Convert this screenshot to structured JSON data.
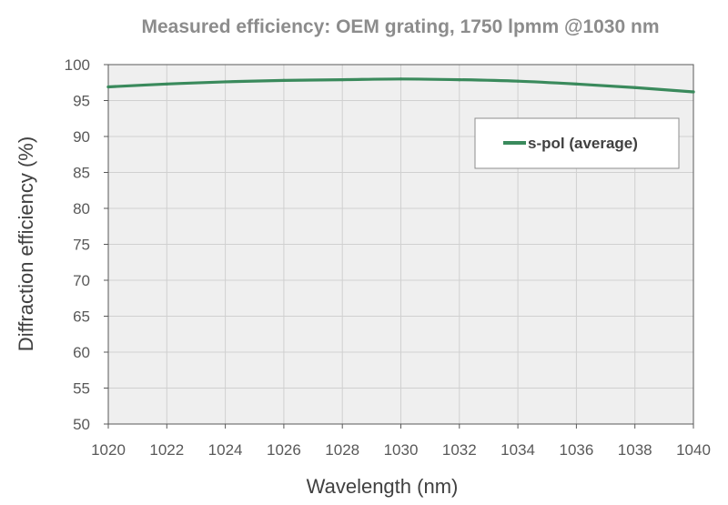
{
  "chart_data": {
    "type": "line",
    "title": "Measured efficiency: OEM grating, 1750 lpmm @1030 nm",
    "xlabel": "Wavelength (nm)",
    "ylabel": "Diffraction efficiency (%)",
    "xlim": [
      1020,
      1040
    ],
    "ylim": [
      50,
      100
    ],
    "x_ticks": [
      1020,
      1022,
      1024,
      1026,
      1028,
      1030,
      1032,
      1034,
      1036,
      1038,
      1040
    ],
    "y_ticks": [
      50,
      55,
      60,
      65,
      70,
      75,
      80,
      85,
      90,
      95,
      100
    ],
    "grid": true,
    "legend_position": "upper-right",
    "series": [
      {
        "name": "s-pol (average)",
        "color": "#3a8a5c",
        "x": [
          1020,
          1022,
          1024,
          1026,
          1028,
          1030,
          1032,
          1034,
          1036,
          1038,
          1040
        ],
        "y": [
          96.9,
          97.3,
          97.6,
          97.8,
          97.9,
          98.0,
          97.9,
          97.7,
          97.3,
          96.8,
          96.2
        ]
      }
    ]
  }
}
